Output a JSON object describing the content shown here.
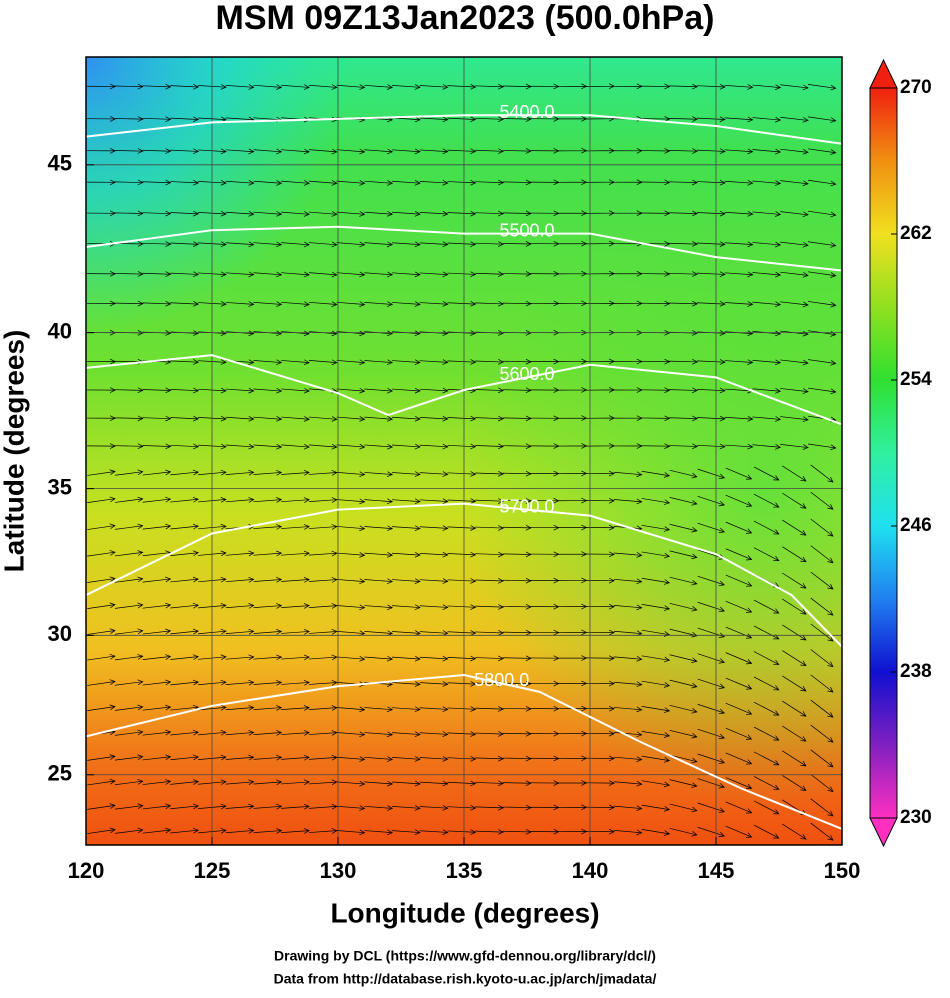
{
  "chart_data": {
    "type": "map",
    "title": "MSM 09Z13Jan2023 (500.0hPa)",
    "xlabel": "Longitude (degrees)",
    "ylabel": "Latitude  (degrees)",
    "xlim": [
      120,
      150
    ],
    "xticks": [
      120,
      125,
      130,
      135,
      140,
      145,
      150
    ],
    "ylim": [
      22.4,
      48
    ],
    "yticks": [
      25,
      30,
      35,
      40,
      45
    ],
    "projection": "mercator",
    "colorbar": {
      "lim": [
        230,
        270
      ],
      "ticks": [
        230,
        238,
        246,
        254,
        262,
        270
      ],
      "stops": [
        [
          230,
          "#ff30c0"
        ],
        [
          234,
          "#8020c0"
        ],
        [
          238,
          "#1010d0"
        ],
        [
          242,
          "#2080f0"
        ],
        [
          246,
          "#20e0f0"
        ],
        [
          250,
          "#30f0a0"
        ],
        [
          254,
          "#30e030"
        ],
        [
          258,
          "#90e020"
        ],
        [
          262,
          "#f0e020"
        ],
        [
          266,
          "#f09010"
        ],
        [
          270,
          "#f02010"
        ]
      ]
    },
    "contours": [
      {
        "label": "5400.0",
        "label_at": 4,
        "lon": [
          120,
          125,
          130,
          135,
          140,
          145,
          150
        ],
        "lat": [
          45.8,
          46.2,
          46.3,
          46.4,
          46.4,
          46.1,
          45.6
        ]
      },
      {
        "label": "5500.0",
        "label_at": 4,
        "lon": [
          120,
          125,
          130,
          135,
          140,
          145,
          150
        ],
        "lat": [
          42.6,
          43.1,
          43.2,
          43.0,
          43.0,
          42.3,
          41.9
        ]
      },
      {
        "label": "5600.0",
        "label_at": 5,
        "lon": [
          120,
          125,
          130,
          132,
          135,
          140,
          145,
          150
        ],
        "lat": [
          38.9,
          39.3,
          38.1,
          37.4,
          38.2,
          39.0,
          38.6,
          37.1
        ]
      },
      {
        "label": "5700.0",
        "label_at": 4,
        "lon": [
          120,
          125,
          130,
          135,
          140,
          145,
          148,
          150
        ],
        "lat": [
          31.4,
          33.5,
          34.3,
          34.5,
          34.1,
          32.8,
          31.4,
          29.6
        ]
      },
      {
        "label": "5800.0",
        "label_at": 4,
        "lon": [
          120,
          125,
          130,
          135,
          138,
          142,
          146,
          150
        ],
        "lat": [
          26.4,
          27.5,
          28.2,
          28.6,
          28.0,
          26.2,
          24.5,
          23.0
        ]
      }
    ],
    "credits": [
      "Drawing by DCL (https://www.gfd-dennou.org/library/dcl/)",
      "Data from http://database.rish.kyoto-u.ac.jp/arch/jmadata/"
    ]
  }
}
